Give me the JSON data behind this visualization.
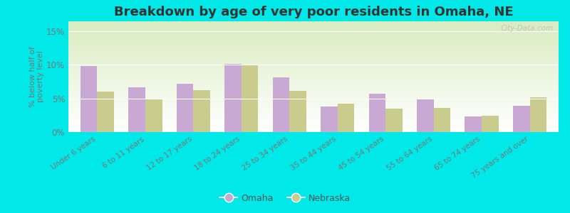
{
  "title": "Breakdown by age of very poor residents in Omaha, NE",
  "ylabel": "% below half of\npoverty level",
  "categories": [
    "Under 6 years",
    "6 to 11 years",
    "12 to 17 years",
    "18 to 24 years",
    "25 to 34 years",
    "35 to 44 years",
    "45 to 54 years",
    "55 to 64 years",
    "65 to 74 years",
    "75 years and over"
  ],
  "omaha_values": [
    9.8,
    6.7,
    7.2,
    10.2,
    8.1,
    3.8,
    5.7,
    5.0,
    2.3,
    3.9
  ],
  "nebraska_values": [
    6.0,
    5.0,
    6.2,
    9.9,
    6.1,
    4.2,
    3.5,
    3.6,
    2.4,
    5.2
  ],
  "omaha_color": "#c9a8d4",
  "nebraska_color": "#c9cc8c",
  "bg_outer": "#00e8e8",
  "bg_plot_top": "#d8ecc0",
  "bg_plot_bottom": "#ffffff",
  "yticks": [
    0,
    5,
    10,
    15
  ],
  "ylim": [
    0,
    16.5
  ],
  "title_fontsize": 13,
  "legend_labels": [
    "Omaha",
    "Nebraska"
  ],
  "watermark": "City-Data.com"
}
